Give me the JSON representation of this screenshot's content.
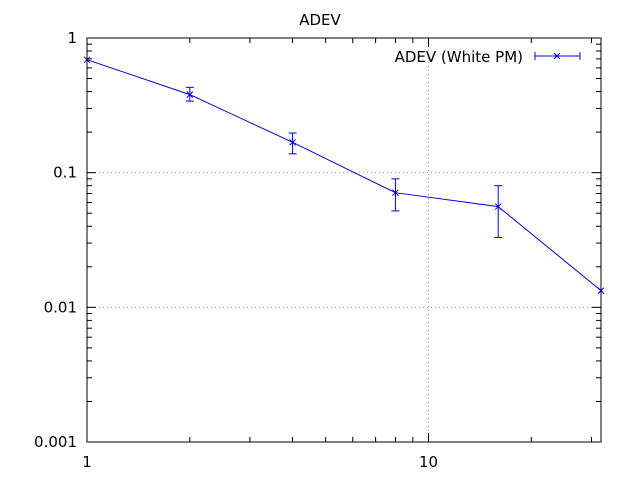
{
  "chart_data": {
    "type": "line",
    "title": "ADEV",
    "xlabel": "",
    "ylabel": "",
    "x_scale": "log",
    "y_scale": "log",
    "xlim": [
      1,
      32
    ],
    "ylim": [
      0.001,
      1
    ],
    "x_ticks": [
      1,
      10
    ],
    "x_tick_labels": [
      "1",
      "10"
    ],
    "y_ticks": [
      0.001,
      0.01,
      0.1,
      1
    ],
    "y_tick_labels": [
      "0.001",
      "0.01",
      "0.1",
      "1"
    ],
    "grid": true,
    "grid_x": [
      10
    ],
    "grid_y": [
      0.01,
      0.1
    ],
    "legend_position": "top-right",
    "series": [
      {
        "name": "ADEV (White PM)",
        "color": "#0000e0",
        "marker": "x",
        "x": [
          1,
          2,
          4,
          8,
          16,
          32
        ],
        "y": [
          0.69,
          0.38,
          0.168,
          0.071,
          0.056,
          0.0133
        ],
        "y_err_low": [
          0.69,
          0.34,
          0.138,
          0.052,
          0.033,
          0.0133
        ],
        "y_err_high": [
          0.69,
          0.43,
          0.197,
          0.09,
          0.08,
          0.0133
        ]
      }
    ]
  }
}
